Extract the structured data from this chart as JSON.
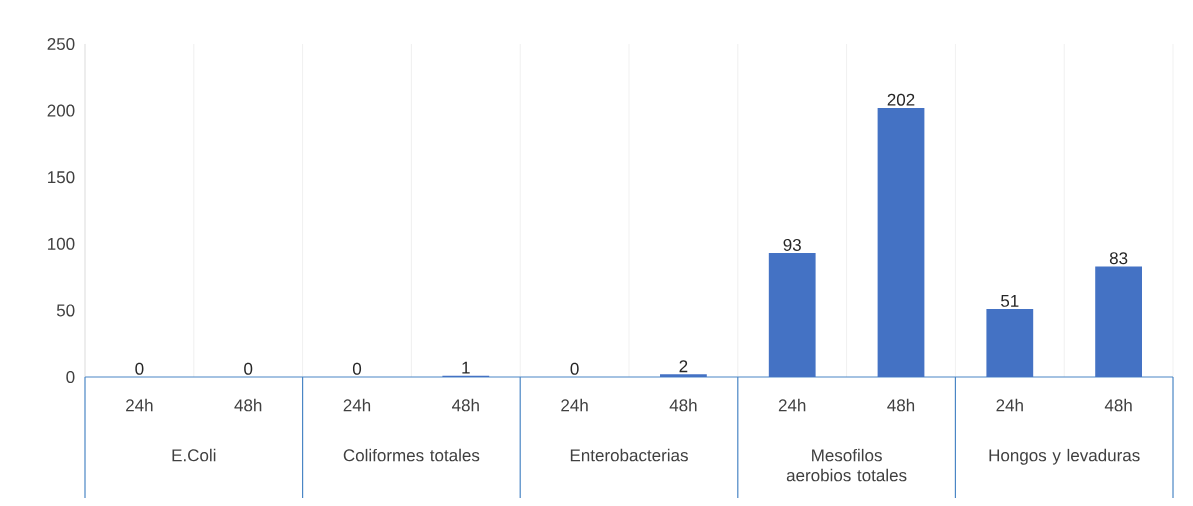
{
  "chart_data": {
    "type": "bar",
    "categories": [
      "24h",
      "48h",
      "24h",
      "48h",
      "24h",
      "48h",
      "24h",
      "48h",
      "24h",
      "48h"
    ],
    "values": [
      0,
      0,
      0,
      1,
      0,
      2,
      93,
      202,
      51,
      83
    ],
    "color": "#4472c4",
    "ylim": [
      0,
      250
    ],
    "yticks": [
      0,
      50,
      100,
      150,
      200,
      250
    ],
    "grid": "x",
    "data_labels": true,
    "annotations": [
      "E.Coli",
      "Coliformes totales",
      "Enterobacterias",
      "Mesofilos aerobios totales",
      "Hongos y levaduras"
    ]
  }
}
